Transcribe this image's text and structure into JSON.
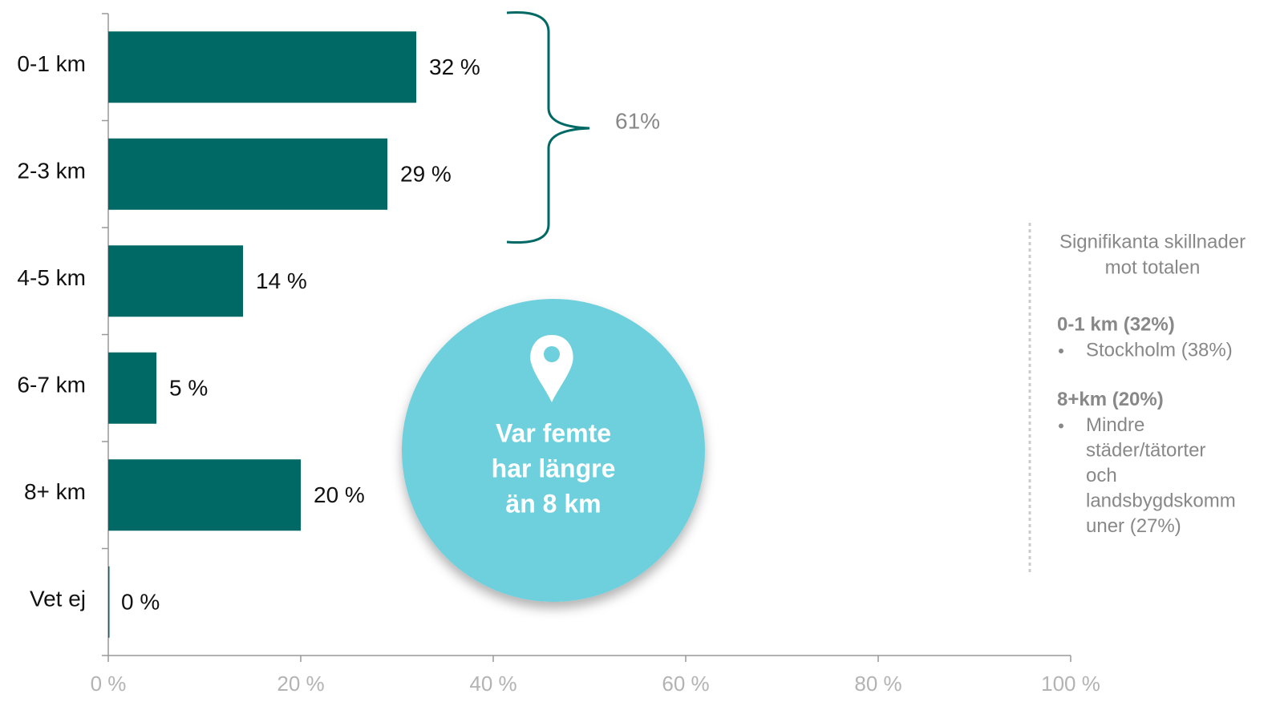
{
  "chart_data": {
    "type": "bar",
    "orientation": "horizontal",
    "categories": [
      "0-1 km",
      "2-3 km",
      "4-5 km",
      "6-7 km",
      "8+ km",
      "Vet ej"
    ],
    "values": [
      32,
      29,
      14,
      5,
      20,
      0
    ],
    "value_labels": [
      "32 %",
      "29 %",
      "14 %",
      "5 %",
      "20 %",
      "0 %"
    ],
    "color": "#006965",
    "xlim": [
      0,
      100
    ],
    "xticks": [
      {
        "value": 0,
        "label": "0 %"
      },
      {
        "value": 20,
        "label": "20 %"
      },
      {
        "value": 40,
        "label": "40 %"
      },
      {
        "value": 60,
        "label": "60 %"
      },
      {
        "value": 80,
        "label": "80 %"
      },
      {
        "value": 100,
        "label": "100 %"
      }
    ],
    "annotations": {
      "brace_total": "61%",
      "callout": [
        "Var femte",
        "har längre",
        "än 8 km"
      ]
    }
  },
  "note": {
    "title": [
      "Signifikanta skillnader",
      "mot totalen"
    ],
    "groups": [
      {
        "heading": "0-1 km (32%)",
        "items": [
          [
            "Stockholm (38%)"
          ]
        ]
      },
      {
        "heading": "8+km (20%)",
        "items": [
          [
            "Mindre",
            "städer/tätorter",
            "och",
            "landsbygdskomm",
            "uner (27%)"
          ]
        ]
      }
    ]
  }
}
